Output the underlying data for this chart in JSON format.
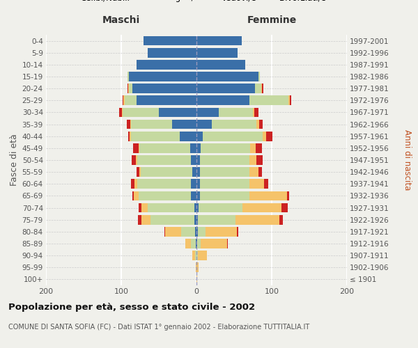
{
  "age_groups": [
    "100+",
    "95-99",
    "90-94",
    "85-89",
    "80-84",
    "75-79",
    "70-74",
    "65-69",
    "60-64",
    "55-59",
    "50-54",
    "45-49",
    "40-44",
    "35-39",
    "30-34",
    "25-29",
    "20-24",
    "15-19",
    "10-14",
    "5-9",
    "0-4"
  ],
  "birth_years": [
    "≤ 1901",
    "1902-1906",
    "1907-1911",
    "1912-1916",
    "1917-1921",
    "1922-1926",
    "1927-1931",
    "1932-1936",
    "1937-1941",
    "1942-1946",
    "1947-1951",
    "1952-1956",
    "1957-1961",
    "1962-1966",
    "1967-1971",
    "1972-1976",
    "1977-1981",
    "1982-1986",
    "1987-1991",
    "1992-1996",
    "1997-2001"
  ],
  "maschi_celibi": [
    0,
    0,
    0,
    1,
    2,
    3,
    3,
    7,
    7,
    6,
    7,
    8,
    22,
    32,
    50,
    80,
    85,
    90,
    80,
    65,
    70
  ],
  "maschi_coniugati": [
    0,
    0,
    2,
    6,
    18,
    58,
    62,
    70,
    72,
    68,
    72,
    68,
    65,
    55,
    48,
    15,
    5,
    2,
    0,
    0,
    0
  ],
  "maschi_vedovi": [
    0,
    1,
    4,
    8,
    22,
    12,
    8,
    6,
    3,
    2,
    2,
    1,
    2,
    1,
    1,
    2,
    1,
    0,
    0,
    0,
    0
  ],
  "maschi_divorziati": [
    0,
    0,
    0,
    0,
    1,
    5,
    4,
    2,
    5,
    4,
    5,
    7,
    2,
    5,
    4,
    1,
    1,
    0,
    0,
    0,
    0
  ],
  "femmine_nubili": [
    0,
    0,
    0,
    1,
    2,
    2,
    3,
    5,
    5,
    5,
    5,
    6,
    8,
    20,
    30,
    70,
    78,
    82,
    65,
    55,
    60
  ],
  "femmine_coniugate": [
    0,
    0,
    2,
    5,
    10,
    50,
    58,
    65,
    65,
    65,
    65,
    65,
    80,
    60,
    45,
    52,
    8,
    2,
    0,
    0,
    0
  ],
  "femmine_vedove": [
    1,
    3,
    12,
    35,
    42,
    58,
    52,
    50,
    20,
    12,
    10,
    8,
    5,
    3,
    2,
    2,
    1,
    0,
    0,
    0,
    0
  ],
  "femmine_divorziate": [
    0,
    0,
    0,
    1,
    2,
    5,
    8,
    3,
    5,
    5,
    8,
    8,
    8,
    5,
    5,
    2,
    2,
    0,
    0,
    0,
    0
  ],
  "colors": {
    "celibi": "#3a6fa8",
    "coniugati": "#c5d9a0",
    "vedovi": "#f5c36a",
    "divorziati": "#cc2222"
  },
  "xlim": 200,
  "title": "Popolazione per età, sesso e stato civile - 2002",
  "subtitle": "COMUNE DI SANTA SOFIA (FC) - Dati ISTAT 1° gennaio 2002 - Elaborazione TUTTITALIA.IT",
  "ylabel_left": "Fasce di età",
  "ylabel_right": "Anni di nascita",
  "xlabel_maschi": "Maschi",
  "xlabel_femmine": "Femmine",
  "background_color": "#f0f0eb"
}
